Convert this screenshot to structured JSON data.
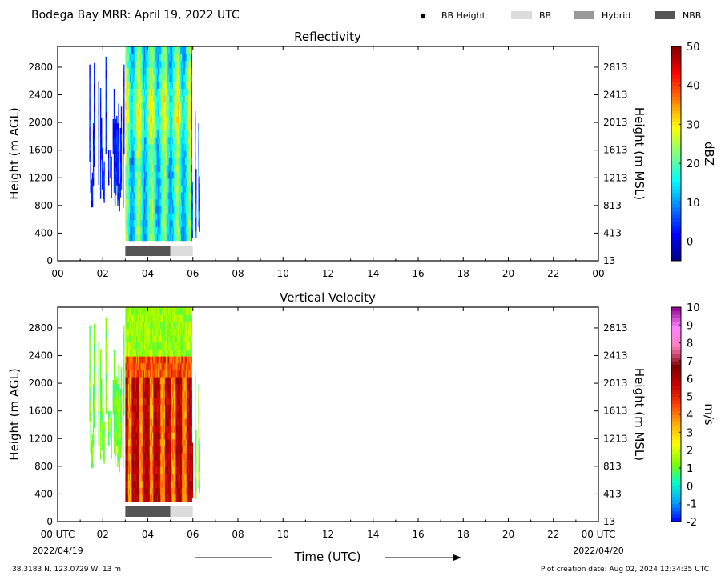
{
  "figure": {
    "title": "Bodega Bay MRR:  April 19, 2022 UTC",
    "legend": [
      {
        "label": "BB Height",
        "marker": "dot",
        "color": "#000000"
      },
      {
        "label": "BB",
        "marker": "box",
        "color": "#dcdcdc"
      },
      {
        "label": "Hybrid",
        "marker": "box",
        "color": "#999999"
      },
      {
        "label": "NBB",
        "marker": "box",
        "color": "#555555"
      }
    ],
    "x_axis_label": "Time (UTC)",
    "start_label": "00 UTC",
    "start_date": "2022/04/19",
    "end_label": "00 UTC",
    "end_date": "2022/04/20",
    "location": "38.3183 N, 123.0729 W, 13 m",
    "creation": "Plot creation date: Aug 02, 2024 12:34:35 UTC"
  },
  "chart_data": [
    {
      "type": "heatmap",
      "title": "Reflectivity",
      "ylabel": "Height (m AGL)",
      "ylabel_right": "Height (m MSL)",
      "colorbar_label": "dBZ",
      "colorbar_ticks": [
        "50",
        "40",
        "30",
        "20",
        "10",
        "0"
      ],
      "colorbar_range": [
        -5,
        50
      ],
      "colormap": [
        "#00007f",
        "#0000ff",
        "#007fff",
        "#00ffff",
        "#7fff7f",
        "#ffff00",
        "#ff7f00",
        "#ff0000",
        "#7f0000"
      ],
      "x_ticks": [
        "00",
        "02",
        "04",
        "06",
        "08",
        "10",
        "12",
        "14",
        "16",
        "18",
        "20",
        "22",
        "00"
      ],
      "xlim": [
        0,
        24
      ],
      "y_ticks": [
        0,
        400,
        800,
        1200,
        1600,
        2000,
        2400,
        2800
      ],
      "ylim": [
        0,
        3100
      ],
      "y_right_ticks": [
        13,
        413,
        813,
        1213,
        1613,
        2013,
        2413,
        2813
      ],
      "data_period_utc": [
        1.4,
        6.3
      ],
      "approx_values": "sparse weak echoes (about 0 to 5 dBZ) from 01:20 to 02:50 UTC between 800 and 2900 m; deeper precipitation (about 5 to 28 dBZ) from 03:00 to 06:20 UTC, from 300 m to above 3000 m",
      "bb_segments": [
        {
          "type": "NBB",
          "start": 3.0,
          "end": 5.0
        },
        {
          "type": "BB",
          "start": 5.0,
          "end": 6.0
        }
      ]
    },
    {
      "type": "heatmap",
      "title": "Vertical Velocity",
      "ylabel": "Height (m AGL)",
      "ylabel_right": "Height (m MSL)",
      "colorbar_label": "m/s",
      "colorbar_ticks": [
        "10",
        "9",
        "8",
        "7",
        "6",
        "5",
        "4",
        "3",
        "2",
        "1",
        "0",
        "-1",
        "-2"
      ],
      "colorbar_range": [
        -2,
        10
      ],
      "colormap": [
        "#0000ff",
        "#00a0ff",
        "#00ffcc",
        "#7fff00",
        "#ffff00",
        "#ffb000",
        "#ff4000",
        "#c80000",
        "#800000",
        "#ff80c0",
        "#ff80ff",
        "#8b008b"
      ],
      "x_ticks": [
        "00 UTC",
        "02",
        "04",
        "06",
        "08",
        "10",
        "12",
        "14",
        "16",
        "18",
        "20",
        "22",
        "00 UTC"
      ],
      "xlim": [
        0,
        24
      ],
      "y_ticks": [
        0,
        400,
        800,
        1200,
        1600,
        2000,
        2400,
        2800
      ],
      "ylim": [
        0,
        3100
      ],
      "y_right_ticks": [
        13,
        413,
        813,
        1213,
        1613,
        2013,
        2413,
        2813
      ],
      "data_period_utc": [
        1.4,
        6.3
      ],
      "approx_values": "about 0.5 to 1.5 m/s aloft and during light precipitation; about 5 to 6.5 m/s below about 2100 m from 03:00 to 06:00 UTC",
      "bb_segments": [
        {
          "type": "NBB",
          "start": 3.0,
          "end": 5.0
        },
        {
          "type": "BB",
          "start": 5.0,
          "end": 6.0
        }
      ]
    }
  ]
}
